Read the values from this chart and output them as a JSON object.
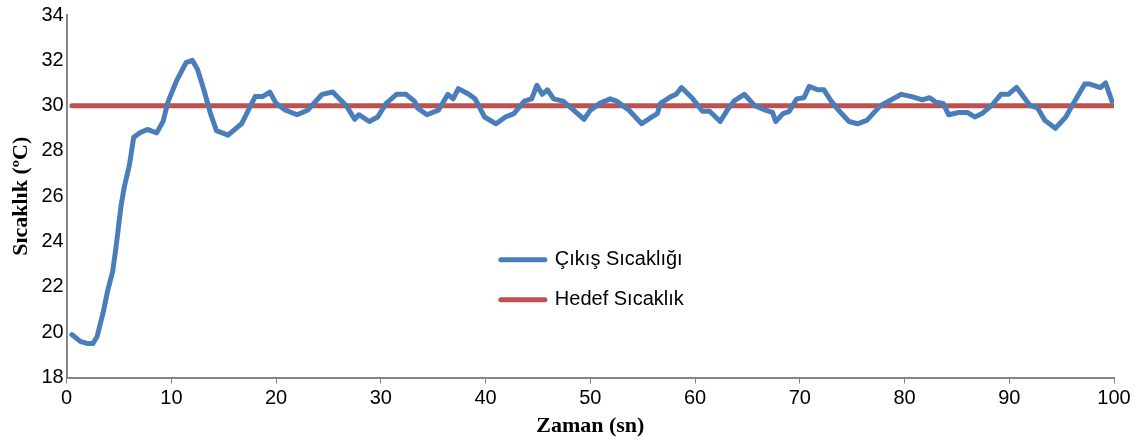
{
  "chart_data": {
    "type": "line",
    "xlabel": "Zaman (sn)",
    "ylabel": "Sıcaklık (ºC)",
    "xlim": [
      0,
      100
    ],
    "xticks": [
      0,
      10,
      20,
      30,
      40,
      50,
      60,
      70,
      80,
      90,
      100
    ],
    "ylim": [
      18,
      34
    ],
    "yticks": [
      18,
      20,
      22,
      24,
      26,
      28,
      30,
      32,
      34
    ],
    "grid": false,
    "legend": "center",
    "marker": "none",
    "line_style": "solid",
    "series": [
      {
        "name": "Çıkış Sıcaklığı",
        "color": "#4a7ebb",
        "x": [
          0.5,
          1.3,
          2.0,
          2.5,
          2.9,
          3.5,
          3.9,
          4.4,
          4.7,
          5.2,
          5.5,
          6.0,
          6.4,
          7.0,
          7.7,
          8.6,
          9.2,
          9.7,
          10.5,
          11.4,
          12.0,
          12.5,
          13.1,
          13.7,
          14.3,
          15.4,
          16.7,
          18.0,
          18.7,
          19.4,
          20.0,
          20.9,
          22.0,
          23.0,
          24.4,
          25.4,
          26.7,
          27.5,
          27.9,
          28.9,
          29.7,
          30.5,
          31.5,
          32.4,
          33.2,
          33.5,
          34.4,
          35.5,
          36.4,
          36.9,
          37.4,
          38.4,
          39.0,
          39.9,
          41.0,
          41.9,
          42.7,
          43.7,
          44.4,
          44.9,
          45.4,
          45.9,
          46.5,
          47.4,
          48.4,
          49.4,
          50.0,
          50.9,
          51.9,
          52.5,
          53.7,
          54.9,
          55.7,
          56.4,
          56.7,
          57.7,
          58.2,
          58.7,
          59.7,
          60.7,
          61.4,
          62.4,
          63.0,
          63.7,
          64.7,
          65.7,
          66.7,
          67.4,
          67.7,
          68.4,
          69.0,
          69.7,
          70.4,
          70.9,
          71.7,
          72.3,
          73.0,
          73.7,
          74.7,
          75.5,
          76.4,
          77.7,
          78.7,
          79.7,
          80.7,
          81.7,
          82.4,
          83.0,
          83.7,
          84.2,
          85.2,
          86.0,
          86.7,
          87.4,
          88.4,
          89.2,
          89.9,
          90.7,
          92.0,
          92.7,
          93.4,
          94.4,
          95.4,
          96.0,
          97.2,
          97.7,
          98.7,
          99.2,
          99.8
        ],
        "values": [
          19.9,
          19.6,
          19.5,
          19.5,
          19.8,
          20.9,
          21.8,
          22.7,
          23.7,
          25.6,
          26.4,
          27.4,
          28.6,
          28.8,
          28.95,
          28.8,
          29.3,
          30.2,
          31.1,
          31.9,
          32.0,
          31.6,
          30.7,
          29.7,
          28.9,
          28.7,
          29.2,
          30.4,
          30.4,
          30.6,
          30.1,
          29.8,
          29.6,
          29.8,
          30.5,
          30.6,
          30.0,
          29.4,
          29.6,
          29.3,
          29.5,
          30.1,
          30.5,
          30.5,
          30.2,
          29.9,
          29.6,
          29.8,
          30.5,
          30.3,
          30.75,
          30.5,
          30.3,
          29.5,
          29.2,
          29.5,
          29.65,
          30.2,
          30.3,
          30.9,
          30.5,
          30.7,
          30.3,
          30.2,
          29.8,
          29.4,
          29.8,
          30.1,
          30.3,
          30.2,
          29.8,
          29.2,
          29.45,
          29.65,
          30.1,
          30.4,
          30.5,
          30.8,
          30.35,
          29.75,
          29.75,
          29.3,
          29.75,
          30.2,
          30.5,
          30.0,
          29.8,
          29.7,
          29.3,
          29.65,
          29.75,
          30.3,
          30.35,
          30.85,
          30.7,
          30.7,
          30.2,
          29.8,
          29.3,
          29.2,
          29.35,
          30.0,
          30.25,
          30.5,
          30.4,
          30.25,
          30.35,
          30.15,
          30.1,
          29.6,
          29.7,
          29.7,
          29.5,
          29.65,
          30.05,
          30.5,
          30.5,
          30.8,
          30.0,
          29.9,
          29.35,
          29.0,
          29.5,
          30.0,
          30.95,
          30.95,
          30.8,
          31.0,
          30.2
        ]
      },
      {
        "name": "Hedef Sıcaklık",
        "color": "#c0504d",
        "x": [
          0.5,
          100
        ],
        "values": [
          30,
          30
        ]
      }
    ]
  }
}
